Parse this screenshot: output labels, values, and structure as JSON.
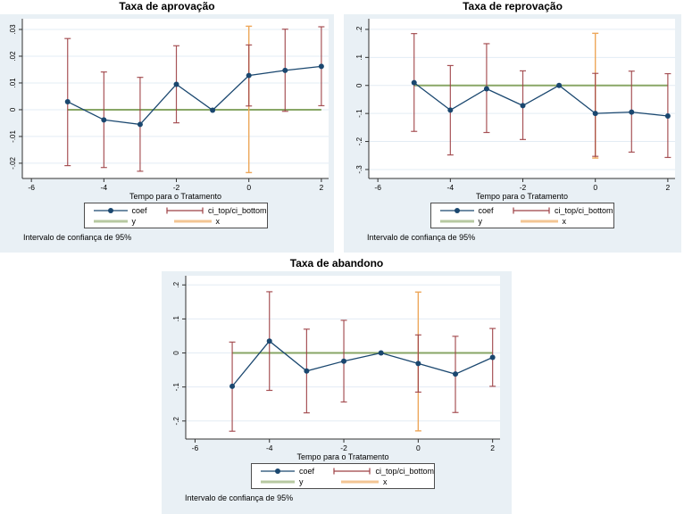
{
  "colors": {
    "page_bg": "#ffffff",
    "region_bg": "#e9f0f5",
    "plot_bg": "#ffffff",
    "grid": "#e3ecf4",
    "axis": "#303030",
    "text": "#000000",
    "coef_navy": "#1a476f",
    "ci_maroon": "#9e4145",
    "y_line_green": "#7e9e56",
    "x_line_orange": "#eda75a"
  },
  "chart_data": [
    {
      "type": "line",
      "title": "Taxa de aprovação",
      "xlabel": "Tempo para o Tratamento",
      "caption": "Intervalo de confiança de 95%",
      "legend": {
        "coef": "coef",
        "ci": "ci_top/ci_bottom",
        "y": "y",
        "x": "x"
      },
      "x_range": [
        -6.25,
        2.2
      ],
      "y_range": [
        -0.0257,
        0.034
      ],
      "grid": true,
      "legend_position": "bottom-center",
      "x_ticks": [
        {
          "v": -6,
          "label": "-6"
        },
        {
          "v": -4,
          "label": "-4"
        },
        {
          "v": -2,
          "label": "-2"
        },
        {
          "v": 0,
          "label": "0"
        },
        {
          "v": 2,
          "label": "2"
        }
      ],
      "y_ticks": [
        {
          "v": 0.03,
          "label": ".03"
        },
        {
          "v": 0.02,
          "label": ".02"
        },
        {
          "v": 0.01,
          "label": ".01"
        },
        {
          "v": 0,
          "label": "0"
        },
        {
          "v": -0.01,
          "label": "-.01"
        },
        {
          "v": -0.02,
          "label": "-.02"
        }
      ],
      "zero_line": {
        "y": 0,
        "x_from": -5,
        "x_to": 2
      },
      "treatment_line": {
        "x": 0,
        "y_from": -0.0235,
        "y_to": 0.0312
      },
      "points": [
        {
          "x": -5,
          "coef": 0.003,
          "ci_low": -0.0209,
          "ci_high": 0.0266
        },
        {
          "x": -4,
          "coef": -0.0038,
          "ci_low": -0.0216,
          "ci_high": 0.0141
        },
        {
          "x": -3,
          "coef": -0.0055,
          "ci_low": -0.023,
          "ci_high": 0.0121
        },
        {
          "x": -2,
          "coef": 0.0095,
          "ci_low": -0.0049,
          "ci_high": 0.0239
        },
        {
          "x": -1,
          "coef": -0.0002,
          "ci_low": null,
          "ci_high": null
        },
        {
          "x": 0,
          "coef": 0.0128,
          "ci_low": 0.0014,
          "ci_high": 0.0242
        },
        {
          "x": 1,
          "coef": 0.0147,
          "ci_low": -0.0006,
          "ci_high": 0.0301
        },
        {
          "x": 2,
          "coef": 0.0162,
          "ci_low": 0.0015,
          "ci_high": 0.031
        }
      ]
    },
    {
      "type": "line",
      "title": "Taxa de reprovação",
      "xlabel": "Tempo para o Tratamento",
      "caption": "Intervalo de confiança de 95%",
      "legend": {
        "coef": "coef",
        "ci": "ci_top/ci_bottom",
        "y": "y",
        "x": "x"
      },
      "x_range": [
        -6.25,
        2.2
      ],
      "y_range": [
        -0.332,
        0.238
      ],
      "grid": true,
      "legend_position": "bottom-center",
      "x_ticks": [
        {
          "v": -6,
          "label": "-6"
        },
        {
          "v": -4,
          "label": "-4"
        },
        {
          "v": -2,
          "label": "-2"
        },
        {
          "v": 0,
          "label": "0"
        },
        {
          "v": 2,
          "label": "2"
        }
      ],
      "y_ticks": [
        {
          "v": 0.2,
          "label": ".2"
        },
        {
          "v": 0.1,
          "label": ".1"
        },
        {
          "v": 0,
          "label": "0"
        },
        {
          "v": -0.1,
          "label": "-.1"
        },
        {
          "v": -0.2,
          "label": "-.2"
        },
        {
          "v": -0.3,
          "label": "-.3"
        }
      ],
      "zero_line": {
        "y": 0,
        "x_from": -5,
        "x_to": 2
      },
      "treatment_line": {
        "x": 0,
        "y_from": -0.259,
        "y_to": 0.186
      },
      "points": [
        {
          "x": -5,
          "coef": 0.01,
          "ci_low": -0.164,
          "ci_high": 0.185
        },
        {
          "x": -4,
          "coef": -0.088,
          "ci_low": -0.248,
          "ci_high": 0.071
        },
        {
          "x": -3,
          "coef": -0.012,
          "ci_low": -0.168,
          "ci_high": 0.149
        },
        {
          "x": -2,
          "coef": -0.072,
          "ci_low": -0.193,
          "ci_high": 0.052
        },
        {
          "x": -1,
          "coef": 0.0,
          "ci_low": null,
          "ci_high": null
        },
        {
          "x": 0,
          "coef": -0.1,
          "ci_low": -0.253,
          "ci_high": 0.043
        },
        {
          "x": 1,
          "coef": -0.095,
          "ci_low": -0.238,
          "ci_high": 0.051
        },
        {
          "x": 2,
          "coef": -0.109,
          "ci_low": -0.257,
          "ci_high": 0.042
        }
      ]
    },
    {
      "type": "line",
      "title": "Taxa de abandono",
      "xlabel": "Tempo para o Tratamento",
      "caption": "Intervalo de confiança de 95%",
      "legend": {
        "coef": "coef",
        "ci": "ci_top/ci_bottom",
        "y": "y",
        "x": "x"
      },
      "x_range": [
        -6.25,
        2.2
      ],
      "y_range": [
        -0.253,
        0.227
      ],
      "grid": true,
      "legend_position": "bottom-center",
      "x_ticks": [
        {
          "v": -6,
          "label": "-6"
        },
        {
          "v": -4,
          "label": "-4"
        },
        {
          "v": -2,
          "label": "-2"
        },
        {
          "v": 0,
          "label": "0"
        },
        {
          "v": 2,
          "label": "2"
        }
      ],
      "y_ticks": [
        {
          "v": 0.2,
          "label": ".2"
        },
        {
          "v": 0.1,
          "label": ".1"
        },
        {
          "v": 0,
          "label": "0"
        },
        {
          "v": -0.1,
          "label": "-.1"
        },
        {
          "v": -0.2,
          "label": "-.2"
        }
      ],
      "zero_line": {
        "y": 0,
        "x_from": -5,
        "x_to": 2
      },
      "treatment_line": {
        "x": 0,
        "y_from": -0.229,
        "y_to": 0.179
      },
      "points": [
        {
          "x": -5,
          "coef": -0.098,
          "ci_low": -0.23,
          "ci_high": 0.032
        },
        {
          "x": -4,
          "coef": 0.035,
          "ci_low": -0.11,
          "ci_high": 0.18
        },
        {
          "x": -3,
          "coef": -0.053,
          "ci_low": -0.176,
          "ci_high": 0.07
        },
        {
          "x": -2,
          "coef": -0.024,
          "ci_low": -0.144,
          "ci_high": 0.096
        },
        {
          "x": -1,
          "coef": 0.0,
          "ci_low": null,
          "ci_high": null
        },
        {
          "x": 0,
          "coef": -0.031,
          "ci_low": -0.115,
          "ci_high": 0.053
        },
        {
          "x": 1,
          "coef": -0.062,
          "ci_low": -0.175,
          "ci_high": 0.049
        },
        {
          "x": 2,
          "coef": -0.013,
          "ci_low": -0.098,
          "ci_high": 0.072
        }
      ]
    }
  ]
}
